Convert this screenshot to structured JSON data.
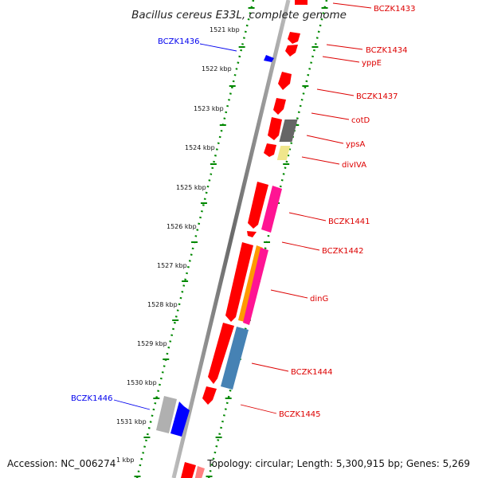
{
  "title": "Bacillus cereus E33L, complete genome",
  "ticks": [
    "1521 kbp",
    "1522 kbp",
    "1523 kbp",
    "1524 kbp",
    "1525 kbp",
    "1526 kbp",
    "1527 kbp",
    "1528 kbp",
    "1529 kbp",
    "1530 kbp",
    "1531 kbp"
  ],
  "bottom_tick_partial": "1 kbp",
  "genes": {
    "reverse": [
      {
        "label": "BCZK1436",
        "color": "#0000ee"
      },
      {
        "label": "BCZK1446",
        "color": "#0000ee"
      }
    ],
    "forward": [
      {
        "label": "BCZK1433",
        "color": "#dd0000"
      },
      {
        "label": "BCZK1434",
        "color": "#dd0000"
      },
      {
        "label": "yppE",
        "color": "#dd0000"
      },
      {
        "label": "BCZK1437",
        "color": "#dd0000"
      },
      {
        "label": "cotD",
        "color": "#dd0000"
      },
      {
        "label": "ypsA",
        "color": "#dd0000"
      },
      {
        "label": "divIVA",
        "color": "#dd0000"
      },
      {
        "label": "BCZK1441",
        "color": "#dd0000"
      },
      {
        "label": "BCZK1442",
        "color": "#dd0000"
      },
      {
        "label": "dinG",
        "color": "#dd0000"
      },
      {
        "label": "BCZK1444",
        "color": "#dd0000"
      },
      {
        "label": "BCZK1445",
        "color": "#dd0000"
      }
    ]
  },
  "colors": {
    "cds": "#ff0000",
    "reverse_cds": "#0000ff",
    "backbone": "#7a7a7a",
    "ticks": "#008800",
    "feature_gray": "#666666",
    "feature_yellow": "#f0e68c",
    "feature_pink": "#ff1493",
    "feature_orange": "#ff9900",
    "feature_steel": "#4682b4",
    "feature_silver": "#b0b0b0"
  },
  "footer": {
    "accession": "Accession: NC_006274",
    "topology": "Topology: circular; Length: 5,300,915 bp; Genes: 5,269"
  }
}
